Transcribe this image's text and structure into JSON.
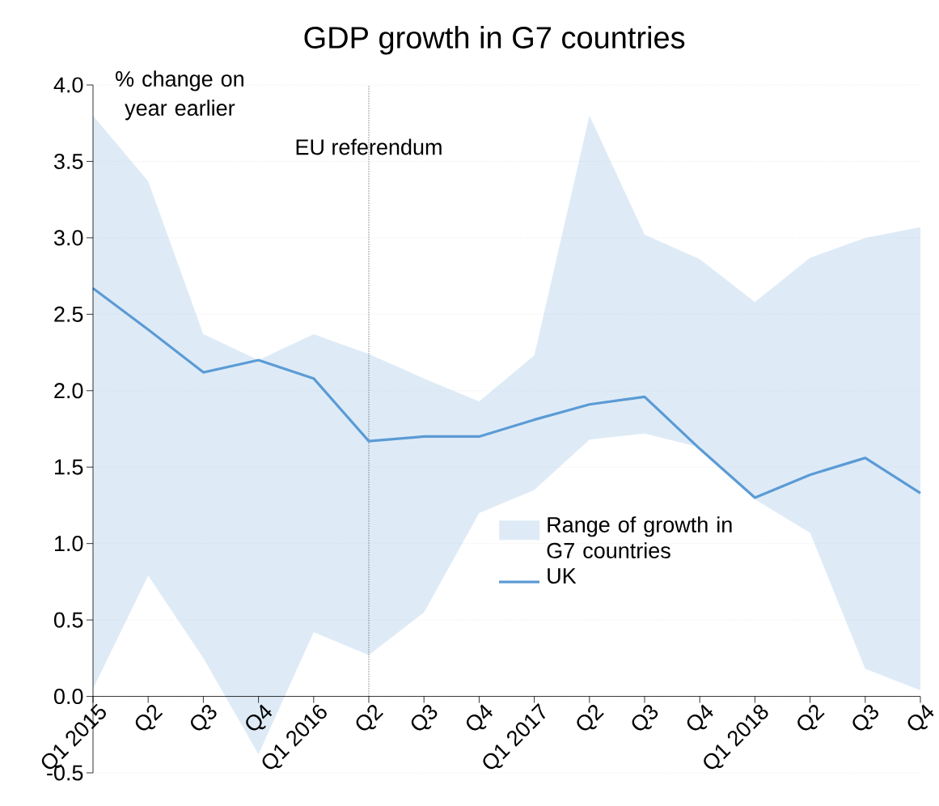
{
  "chart_data": {
    "type": "line",
    "title": "GDP growth in G7 countries",
    "x": [
      "2015-01",
      "2015-04",
      "2015-07",
      "2015-10",
      "2016-01",
      "2016-04",
      "2016-07",
      "2016-10",
      "2017-01",
      "2017-04",
      "2017-07",
      "2017-10",
      "2018-01",
      "2018-04",
      "2018-07",
      "2018-10"
    ],
    "series": [
      {
        "name": "UK",
        "color": "#5b9bd5",
        "values": [
          2.67,
          2.4,
          2.12,
          2.2,
          2.08,
          1.67,
          1.7,
          1.7,
          1.81,
          1.91,
          1.96,
          1.62,
          1.3,
          1.45,
          1.56,
          1.33
        ],
        "lower": [
          0.05,
          0.79,
          0.25,
          -0.38,
          0.42,
          0.27,
          0.55,
          1.2,
          1.35,
          1.68,
          1.72,
          1.63,
          1.29,
          1.07,
          0.18,
          0.04
        ],
        "upper": [
          3.8,
          3.37,
          2.37,
          2.2,
          2.37,
          2.24,
          2.08,
          1.93,
          2.23,
          3.8,
          3.02,
          2.86,
          2.58,
          2.87,
          3.0,
          3.07
        ]
      }
    ],
    "xlim": [
      "2015-01",
      "2018-10"
    ],
    "xticks": [
      {
        "value": "2015-01",
        "label": "Q1 2015"
      },
      {
        "value": "2015-04",
        "label": "Q2"
      },
      {
        "value": "2015-07",
        "label": "Q3"
      },
      {
        "value": "2015-10",
        "label": "Q4"
      },
      {
        "value": "2016-01",
        "label": "Q1 2016"
      },
      {
        "value": "2016-04",
        "label": "Q2"
      },
      {
        "value": "2016-07",
        "label": "Q3"
      },
      {
        "value": "2016-10",
        "label": "Q4"
      },
      {
        "value": "2017-01",
        "label": "Q1 2017"
      },
      {
        "value": "2017-04",
        "label": "Q2"
      },
      {
        "value": "2017-07",
        "label": "Q3"
      },
      {
        "value": "2017-10",
        "label": "Q4"
      },
      {
        "value": "2018-01",
        "label": "Q1 2018"
      },
      {
        "value": "2018-04",
        "label": "Q2"
      },
      {
        "value": "2018-07",
        "label": "Q3"
      },
      {
        "value": "2018-10",
        "label": "Q4"
      }
    ],
    "ylim": [
      -0.5,
      4.0
    ],
    "yticks": [
      {
        "value": -0.5,
        "label": "-0.5"
      },
      {
        "value": 0,
        "label": "0.0"
      },
      {
        "value": 0.5,
        "label": "0.5"
      },
      {
        "value": 1,
        "label": "1.0"
      },
      {
        "value": 1.5,
        "label": "1.5"
      },
      {
        "value": 2,
        "label": "2.0"
      },
      {
        "value": 2.5,
        "label": "2.5"
      },
      {
        "value": 3,
        "label": "3.0"
      },
      {
        "value": 3.5,
        "label": "3.5"
      },
      {
        "value": 4,
        "label": "4.0"
      }
    ],
    "ref_lines": [
      {
        "axis": "x",
        "value": "2016-04",
        "label": "EU referendum",
        "color": "#404040",
        "line_style": "dotted"
      }
    ],
    "annotations": [
      "% change on year earlier",
      "Range of growth in G7 countries"
    ],
    "grid": "y",
    "legend": "bottom",
    "marker": "none",
    "line_style": "solid"
  }
}
